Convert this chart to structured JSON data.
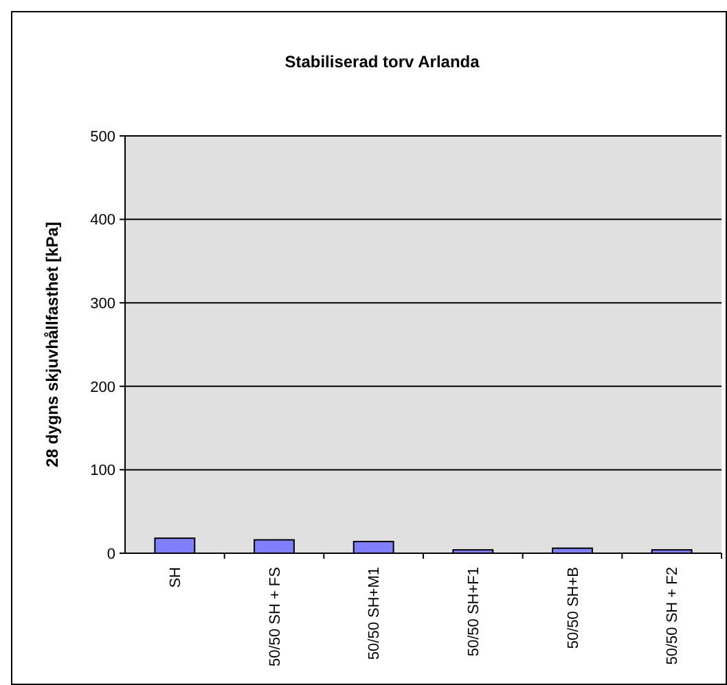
{
  "chart_data": {
    "type": "bar",
    "title": "Stabiliserad torv Arlanda",
    "ylabel": "28 dygns skjuvhållfasthet [kPa]",
    "categories": [
      "SH",
      "50/50 SH + FS",
      "50/50 SH+M1",
      "50/50 SH+F1",
      "50/50 SH+B",
      "50/50 SH + F2"
    ],
    "values": [
      18,
      16,
      14,
      4,
      6,
      4
    ],
    "color": "#8080ff",
    "ylim": [
      0,
      500
    ],
    "yticks": [
      0,
      100,
      200,
      300,
      400,
      500
    ],
    "grid": "y"
  }
}
